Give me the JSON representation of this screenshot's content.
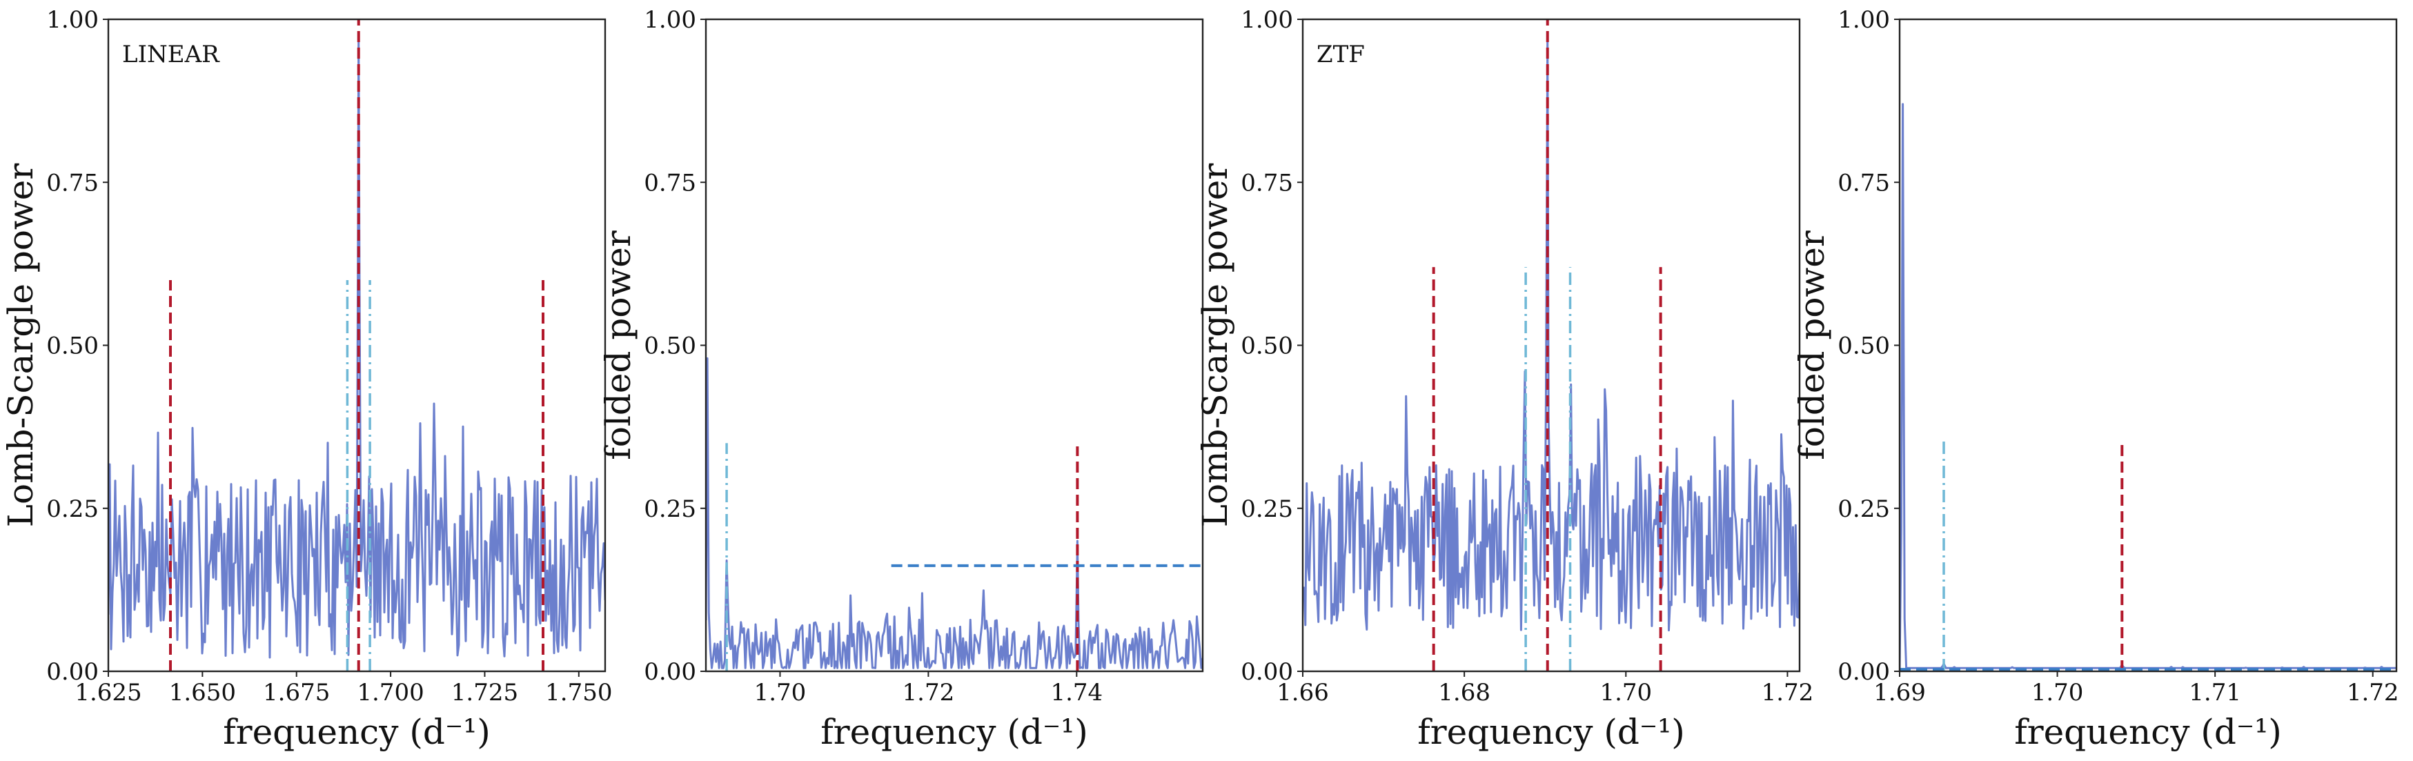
{
  "chart_data": [
    {
      "type": "line",
      "panel_label": "LINEAR",
      "xlabel": "frequency (d⁻¹)",
      "ylabel": "Lomb-Scargle power",
      "xlim": [
        1.625,
        1.757
      ],
      "ylim": [
        0,
        1
      ],
      "xticks": [
        1.625,
        1.65,
        1.675,
        1.7,
        1.725,
        1.75
      ],
      "xtick_labels": [
        "1.625",
        "1.650",
        "1.675",
        "1.700",
        "1.725",
        "1.750"
      ],
      "yticks": [
        0,
        0.25,
        0.5,
        0.75,
        1.0
      ],
      "ytick_labels": [
        "0.00",
        "0.25",
        "0.50",
        "0.75",
        "1.00"
      ],
      "grid": false,
      "noise": {
        "count": 360,
        "base": 0.16,
        "amp": 0.14,
        "seed": 7,
        "max": 0.44
      },
      "peaks": [
        {
          "x": 1.6915,
          "y": 0.97
        }
      ],
      "red_lines": [
        {
          "x": 1.6415,
          "top": 0.6
        },
        {
          "x": 1.6915,
          "top": 1.0
        },
        {
          "x": 1.7405,
          "top": 0.6
        }
      ],
      "cyan_lines": [
        {
          "x": 1.6885,
          "top": 0.6
        },
        {
          "x": 1.6945,
          "top": 0.6
        }
      ],
      "hline": null
    },
    {
      "type": "line",
      "panel_label": "",
      "xlabel": "frequency (d⁻¹)",
      "ylabel": "folded power",
      "xlim": [
        1.69,
        1.757
      ],
      "ylim": [
        0,
        1
      ],
      "xticks": [
        1.7,
        1.72,
        1.74
      ],
      "xtick_labels": [
        "1.70",
        "1.72",
        "1.74"
      ],
      "yticks": [
        0,
        0.25,
        0.5,
        0.75,
        1.0
      ],
      "ytick_labels": [
        "0.00",
        "0.25",
        "0.50",
        "0.75",
        "1.00"
      ],
      "grid": false,
      "noise": {
        "count": 340,
        "base": 0.03,
        "amp": 0.05,
        "seed": 19,
        "max": 0.14
      },
      "peaks": [
        {
          "x": 1.6902,
          "y": 0.48
        },
        {
          "x": 1.6928,
          "y": 0.17
        },
        {
          "x": 1.7401,
          "y": 0.2
        }
      ],
      "red_lines": [
        {
          "x": 1.7401,
          "top": 0.345
        }
      ],
      "cyan_lines": [
        {
          "x": 1.6928,
          "top": 0.35
        }
      ],
      "hline": {
        "x0": 1.715,
        "x1": 1.757,
        "y": 0.162
      }
    },
    {
      "type": "line",
      "panel_label": "ZTF",
      "xlabel": "frequency (d⁻¹)",
      "ylabel": "Lomb-Scargle power",
      "xlim": [
        1.66,
        1.7215
      ],
      "ylim": [
        0,
        1
      ],
      "xticks": [
        1.66,
        1.68,
        1.7,
        1.72
      ],
      "xtick_labels": [
        "1.66",
        "1.68",
        "1.70",
        "1.72"
      ],
      "yticks": [
        0,
        0.25,
        0.5,
        0.75,
        1.0
      ],
      "ytick_labels": [
        "0.00",
        "0.25",
        "0.50",
        "0.75",
        "1.00"
      ],
      "grid": false,
      "noise": {
        "count": 380,
        "base": 0.19,
        "amp": 0.13,
        "seed": 43,
        "max": 0.44
      },
      "peaks": [
        {
          "x": 1.6903,
          "y": 0.98
        },
        {
          "x": 1.6875,
          "y": 0.46
        },
        {
          "x": 1.6932,
          "y": 0.44
        }
      ],
      "red_lines": [
        {
          "x": 1.6762,
          "top": 0.62
        },
        {
          "x": 1.6903,
          "top": 1.0
        },
        {
          "x": 1.7043,
          "top": 0.62
        }
      ],
      "cyan_lines": [
        {
          "x": 1.6876,
          "top": 0.62
        },
        {
          "x": 1.6931,
          "top": 0.62
        }
      ],
      "hline": null
    },
    {
      "type": "line",
      "panel_label": "",
      "xlabel": "frequency (d⁻¹)",
      "ylabel": "folded power",
      "xlim": [
        1.69,
        1.7215
      ],
      "ylim": [
        0,
        1
      ],
      "xticks": [
        1.69,
        1.7,
        1.71,
        1.72
      ],
      "xtick_labels": [
        "1.69",
        "1.70",
        "1.71",
        "1.72"
      ],
      "yticks": [
        0,
        0.25,
        0.5,
        0.75,
        1.0
      ],
      "ytick_labels": [
        "0.00",
        "0.25",
        "0.50",
        "0.75",
        "1.00"
      ],
      "grid": false,
      "noise": {
        "count": 300,
        "base": 0.003,
        "amp": 0.002,
        "seed": 5,
        "max": 0.01
      },
      "peaks": [
        {
          "x": 1.6902,
          "y": 0.87
        },
        {
          "x": 1.6928,
          "y": 0.012
        },
        {
          "x": 1.7041,
          "y": 0.01
        }
      ],
      "red_lines": [
        {
          "x": 1.7041,
          "top": 0.355
        }
      ],
      "cyan_lines": [
        {
          "x": 1.6928,
          "top": 0.355
        }
      ],
      "hline": {
        "x0": 1.69,
        "x1": 1.7215,
        "y": 0.003
      }
    }
  ]
}
